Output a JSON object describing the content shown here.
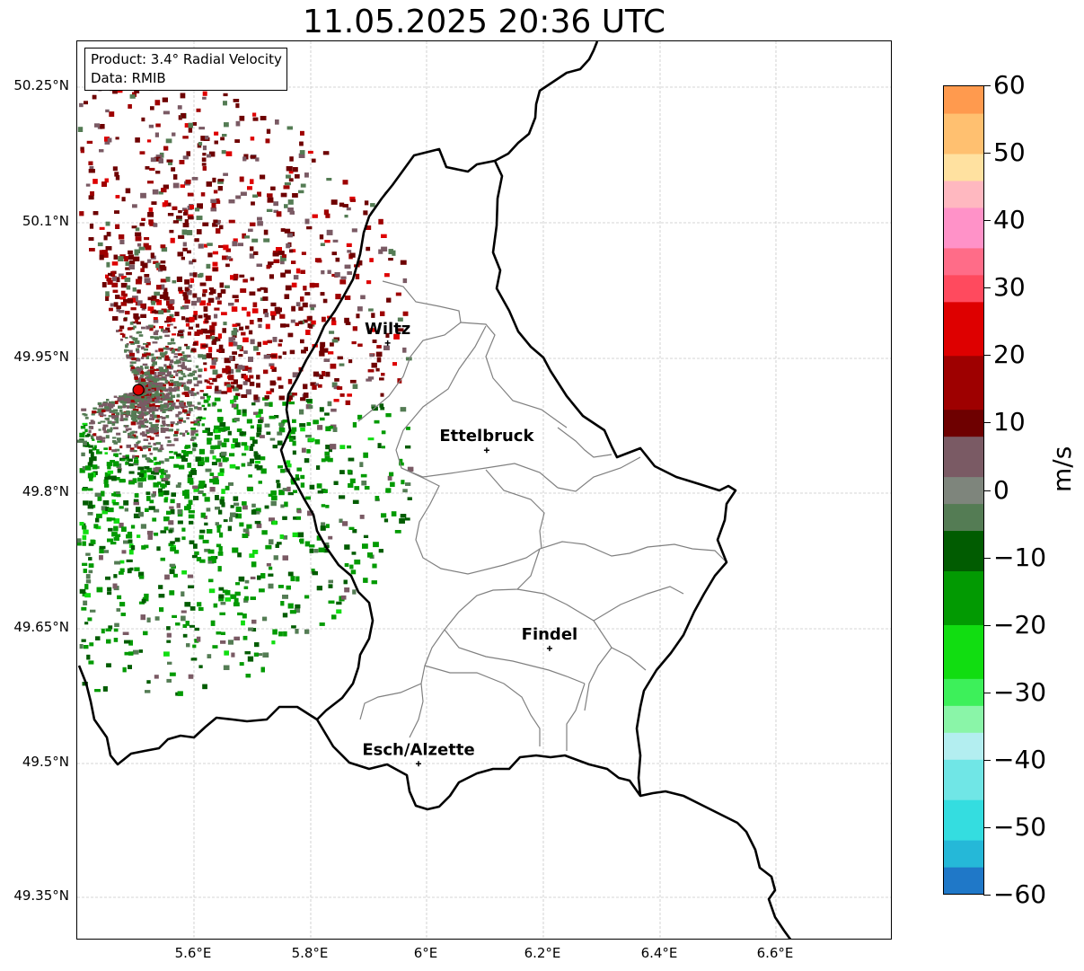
{
  "title": "11.05.2025 20:36 UTC",
  "info": {
    "product": "Product: 3.4° Radial Velocity",
    "source": "Data: RMIB"
  },
  "lat_ticks": [
    "50.25°N",
    "50.1°N",
    "49.95°N",
    "49.8°N",
    "49.65°N",
    "49.5°N",
    "49.35°N"
  ],
  "lon_ticks": [
    "5.6°E",
    "5.8°E",
    "6°E",
    "6.2°E",
    "6.4°E",
    "6.6°E"
  ],
  "cities": [
    {
      "name": "Wiltz",
      "lon": 5.933,
      "lat": 49.966
    },
    {
      "name": "Ettelbruck",
      "lon": 6.103,
      "lat": 49.847
    },
    {
      "name": "Findel",
      "lon": 6.211,
      "lat": 49.627
    },
    {
      "name": "Esch/Alzette",
      "lon": 5.986,
      "lat": 49.499
    }
  ],
  "radar_site": {
    "lon": 5.505,
    "lat": 49.914
  },
  "colorbar": {
    "unit": "m/s",
    "min": -60,
    "max": 60,
    "ticks": [
      "60",
      "50",
      "40",
      "30",
      "20",
      "10",
      "0",
      "−10",
      "−20",
      "−30",
      "−40",
      "−50",
      "−60"
    ],
    "stops": [
      {
        "from": -60,
        "to": -56,
        "color": "#1f78c8"
      },
      {
        "from": -56,
        "to": -52,
        "color": "#25b8d8"
      },
      {
        "from": -52,
        "to": -46,
        "color": "#34dde0"
      },
      {
        "from": -46,
        "to": -40,
        "color": "#70e6e6"
      },
      {
        "from": -40,
        "to": -36,
        "color": "#b3eef0"
      },
      {
        "from": -36,
        "to": -32,
        "color": "#8af5a8"
      },
      {
        "from": -32,
        "to": -28,
        "color": "#3df05a"
      },
      {
        "from": -28,
        "to": -20,
        "color": "#11dd11"
      },
      {
        "from": -20,
        "to": -12,
        "color": "#029a02"
      },
      {
        "from": -12,
        "to": -6,
        "color": "#015c01"
      },
      {
        "from": -6,
        "to": -2,
        "color": "#547c54"
      },
      {
        "from": -2,
        "to": 2,
        "color": "#7e857c"
      },
      {
        "from": 2,
        "to": 8,
        "color": "#7a5a64"
      },
      {
        "from": 8,
        "to": 12,
        "color": "#6e0000"
      },
      {
        "from": 12,
        "to": 20,
        "color": "#9e0000"
      },
      {
        "from": 20,
        "to": 28,
        "color": "#de0000"
      },
      {
        "from": 28,
        "to": 32,
        "color": "#ff4a5e"
      },
      {
        "from": 32,
        "to": 36,
        "color": "#ff6c88"
      },
      {
        "from": 36,
        "to": 42,
        "color": "#ff92c8"
      },
      {
        "from": 42,
        "to": 46,
        "color": "#ffb8c0"
      },
      {
        "from": 46,
        "to": 50,
        "color": "#ffe1a0"
      },
      {
        "from": 50,
        "to": 56,
        "color": "#ffc070"
      },
      {
        "from": 56,
        "to": 60,
        "color": "#ff9a4e"
      }
    ]
  },
  "velocity_colors": {
    "outbound_dark": "#6e0000",
    "outbound": "#9e0000",
    "outbound_bright": "#de0000",
    "neutral_red": "#7a5a64",
    "neutral_green": "#547c54",
    "inbound_dark": "#015c01",
    "inbound": "#029a02",
    "inbound_bright": "#11dd11"
  }
}
